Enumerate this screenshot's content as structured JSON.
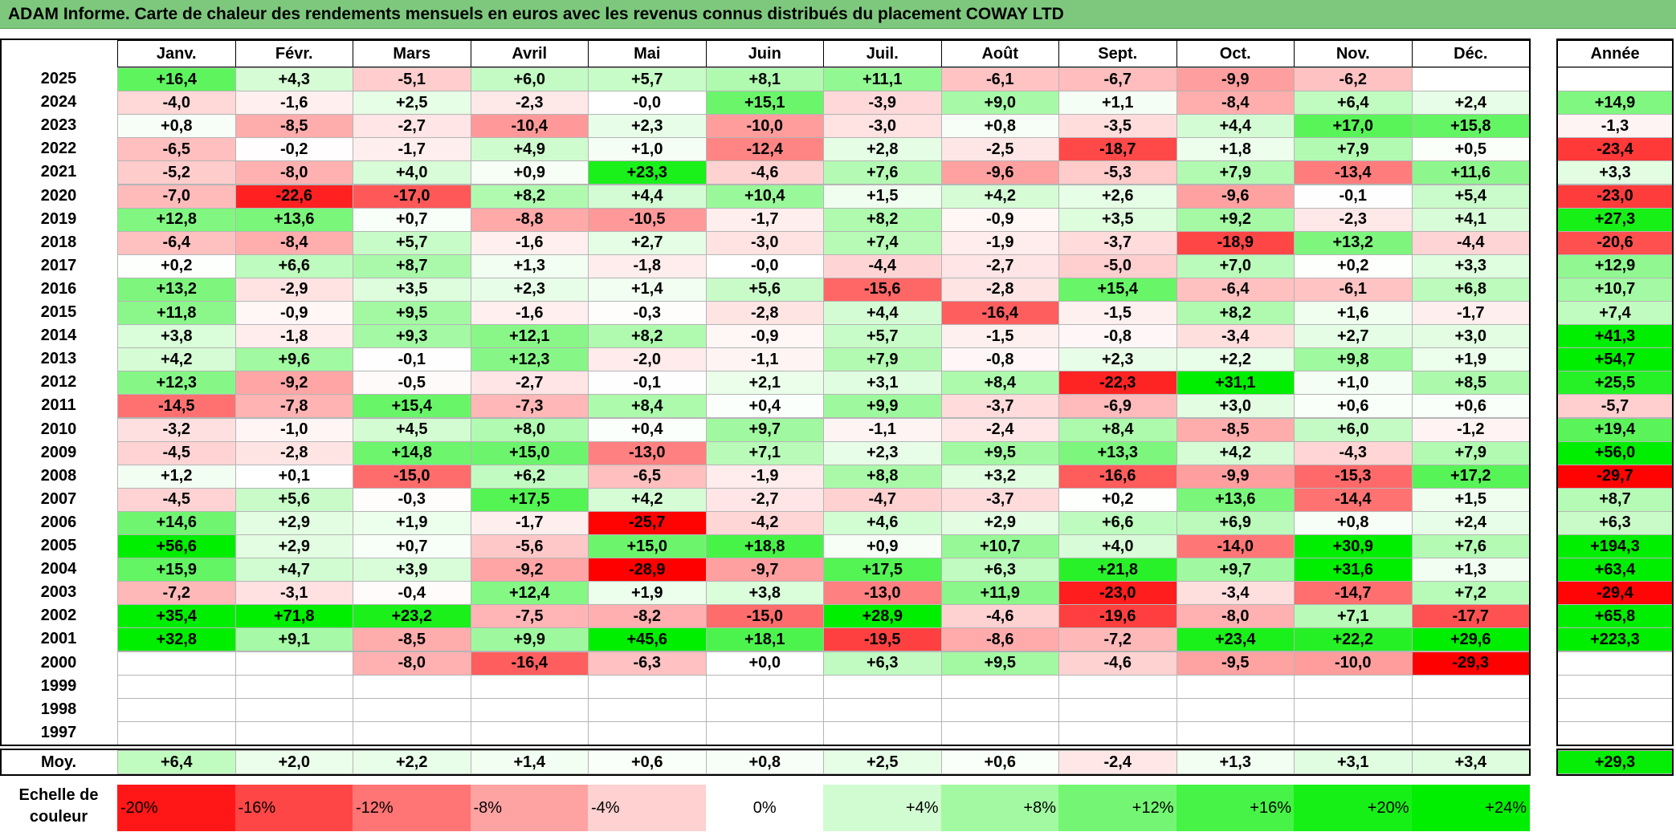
{
  "title": "ADAM Informe. Carte de chaleur des rendements mensuels en euros avec les revenus connus distribués du placement COWAY LTD",
  "chart_data": {
    "type": "heatmap",
    "months": [
      "Janv.",
      "Févr.",
      "Mars",
      "Avril",
      "Mai",
      "Juin",
      "Juil.",
      "Août",
      "Sept.",
      "Oct.",
      "Nov.",
      "Déc."
    ],
    "year_header": "Année",
    "rows": [
      {
        "year": "2025",
        "values": [
          "+16,4",
          "+4,3",
          "-5,1",
          "+6,0",
          "+5,7",
          "+8,1",
          "+11,1",
          "-6,1",
          "-6,7",
          "-9,9",
          "-6,2",
          ""
        ],
        "annual": ""
      },
      {
        "year": "2024",
        "values": [
          "-4,0",
          "-1,6",
          "+2,5",
          "-2,3",
          "-0,0",
          "+15,1",
          "-3,9",
          "+9,0",
          "+1,1",
          "-8,4",
          "+6,4",
          "+2,4"
        ],
        "annual": "+14,9"
      },
      {
        "year": "2023",
        "values": [
          "+0,8",
          "-8,5",
          "-2,7",
          "-10,4",
          "+2,3",
          "-10,0",
          "-3,0",
          "+0,8",
          "-3,5",
          "+4,4",
          "+17,0",
          "+15,8"
        ],
        "annual": "-1,3"
      },
      {
        "year": "2022",
        "values": [
          "-6,5",
          "-0,2",
          "-1,7",
          "+4,9",
          "+1,0",
          "-12,4",
          "+2,8",
          "-2,5",
          "-18,7",
          "+1,8",
          "+7,9",
          "+0,5"
        ],
        "annual": "-23,4"
      },
      {
        "year": "2021",
        "values": [
          "-5,2",
          "-8,0",
          "+4,0",
          "+0,9",
          "+23,3",
          "-4,6",
          "+7,6",
          "-9,6",
          "-5,3",
          "+7,9",
          "-13,4",
          "+11,6"
        ],
        "annual": "+3,3"
      },
      {
        "year": "2020",
        "values": [
          "-7,0",
          "-22,6",
          "-17,0",
          "+8,2",
          "+4,4",
          "+10,4",
          "+1,5",
          "+4,2",
          "+2,6",
          "-9,6",
          "-0,1",
          "+5,4"
        ],
        "annual": "-23,0"
      },
      {
        "year": "2019",
        "values": [
          "+12,8",
          "+13,6",
          "+0,7",
          "-8,8",
          "-10,5",
          "-1,7",
          "+8,2",
          "-0,9",
          "+3,5",
          "+9,2",
          "-2,3",
          "+4,1"
        ],
        "annual": "+27,3"
      },
      {
        "year": "2018",
        "values": [
          "-6,4",
          "-8,4",
          "+5,7",
          "-1,6",
          "+2,7",
          "-3,0",
          "+7,4",
          "-1,9",
          "-3,7",
          "-18,9",
          "+13,2",
          "-4,4"
        ],
        "annual": "-20,6"
      },
      {
        "year": "2017",
        "values": [
          "+0,2",
          "+6,6",
          "+8,7",
          "+1,3",
          "-1,8",
          "-0,0",
          "-4,4",
          "-2,7",
          "-5,0",
          "+7,0",
          "+0,2",
          "+3,3"
        ],
        "annual": "+12,9"
      },
      {
        "year": "2016",
        "values": [
          "+13,2",
          "-2,9",
          "+3,5",
          "+2,3",
          "+1,4",
          "+5,6",
          "-15,6",
          "-2,8",
          "+15,4",
          "-6,4",
          "-6,1",
          "+6,8"
        ],
        "annual": "+10,7"
      },
      {
        "year": "2015",
        "values": [
          "+11,8",
          "-0,9",
          "+9,5",
          "-1,6",
          "-0,3",
          "-2,8",
          "+4,4",
          "-16,4",
          "-1,5",
          "+8,2",
          "+1,6",
          "-1,7"
        ],
        "annual": "+7,4"
      },
      {
        "year": "2014",
        "values": [
          "+3,8",
          "-1,8",
          "+9,3",
          "+12,1",
          "+8,2",
          "-0,9",
          "+5,7",
          "-1,5",
          "-0,8",
          "-3,4",
          "+2,7",
          "+3,0"
        ],
        "annual": "+41,3"
      },
      {
        "year": "2013",
        "values": [
          "+4,2",
          "+9,6",
          "-0,1",
          "+12,3",
          "-2,0",
          "-1,1",
          "+7,9",
          "-0,8",
          "+2,3",
          "+2,2",
          "+9,8",
          "+1,9"
        ],
        "annual": "+54,7"
      },
      {
        "year": "2012",
        "values": [
          "+12,3",
          "-9,2",
          "-0,5",
          "-2,7",
          "-0,1",
          "+2,1",
          "+3,1",
          "+8,4",
          "-22,3",
          "+31,1",
          "+1,0",
          "+8,5"
        ],
        "annual": "+25,5"
      },
      {
        "year": "2011",
        "values": [
          "-14,5",
          "-7,8",
          "+15,4",
          "-7,3",
          "+8,4",
          "+0,4",
          "+9,9",
          "-3,7",
          "-6,9",
          "+3,0",
          "+0,6",
          "+0,6"
        ],
        "annual": "-5,7"
      },
      {
        "year": "2010",
        "values": [
          "-3,2",
          "-1,0",
          "+4,5",
          "+8,0",
          "+0,4",
          "+9,7",
          "-1,1",
          "-2,4",
          "+8,4",
          "-8,5",
          "+6,0",
          "-1,2"
        ],
        "annual": "+19,4"
      },
      {
        "year": "2009",
        "values": [
          "-4,5",
          "-2,8",
          "+14,8",
          "+15,0",
          "-13,0",
          "+7,1",
          "+2,3",
          "+9,5",
          "+13,3",
          "+4,2",
          "-4,3",
          "+7,9"
        ],
        "annual": "+56,0"
      },
      {
        "year": "2008",
        "values": [
          "+1,2",
          "+0,1",
          "-15,0",
          "+6,2",
          "-6,5",
          "-1,9",
          "+8,8",
          "+3,2",
          "-16,6",
          "-9,9",
          "-15,3",
          "+17,2"
        ],
        "annual": "-29,7"
      },
      {
        "year": "2007",
        "values": [
          "-4,5",
          "+5,6",
          "-0,3",
          "+17,5",
          "+4,2",
          "-2,7",
          "-4,7",
          "-3,7",
          "+0,2",
          "+13,6",
          "-14,4",
          "+1,5"
        ],
        "annual": "+8,7"
      },
      {
        "year": "2006",
        "values": [
          "+14,6",
          "+2,9",
          "+1,9",
          "-1,7",
          "-25,7",
          "-4,2",
          "+4,6",
          "+2,9",
          "+6,6",
          "+6,9",
          "+0,8",
          "+2,4"
        ],
        "annual": "+6,3"
      },
      {
        "year": "2005",
        "values": [
          "+56,6",
          "+2,9",
          "+0,7",
          "-5,6",
          "+15,0",
          "+18,8",
          "+0,9",
          "+10,7",
          "+4,0",
          "-14,0",
          "+30,9",
          "+7,6"
        ],
        "annual": "+194,3"
      },
      {
        "year": "2004",
        "values": [
          "+15,9",
          "+4,7",
          "+3,9",
          "-9,2",
          "-28,9",
          "-9,7",
          "+17,5",
          "+6,3",
          "+21,8",
          "+9,7",
          "+31,6",
          "+1,3"
        ],
        "annual": "+63,4"
      },
      {
        "year": "2003",
        "values": [
          "-7,2",
          "-3,1",
          "-0,4",
          "+12,4",
          "+1,9",
          "+3,8",
          "-13,0",
          "+11,9",
          "-23,0",
          "-3,4",
          "-14,7",
          "+7,2"
        ],
        "annual": "-29,4"
      },
      {
        "year": "2002",
        "values": [
          "+35,4",
          "+71,8",
          "+23,2",
          "-7,5",
          "-8,2",
          "-15,0",
          "+28,9",
          "-4,6",
          "-19,6",
          "-8,0",
          "+7,1",
          "-17,7"
        ],
        "annual": "+65,8"
      },
      {
        "year": "2001",
        "values": [
          "+32,8",
          "+9,1",
          "-8,5",
          "+9,9",
          "+45,6",
          "+18,1",
          "-19,5",
          "-8,6",
          "-7,2",
          "+23,4",
          "+22,2",
          "+29,6"
        ],
        "annual": "+223,3"
      },
      {
        "year": "2000",
        "values": [
          "",
          "",
          "-8,0",
          "-16,4",
          "-6,3",
          "+0,0",
          "+6,3",
          "+9,5",
          "-4,6",
          "-9,5",
          "-10,0",
          "-29,3"
        ],
        "annual": ""
      },
      {
        "year": "1999",
        "values": [
          "",
          "",
          "",
          "",
          "",
          "",
          "",
          "",
          "",
          "",
          "",
          ""
        ],
        "annual": ""
      },
      {
        "year": "1998",
        "values": [
          "",
          "",
          "",
          "",
          "",
          "",
          "",
          "",
          "",
          "",
          "",
          ""
        ],
        "annual": ""
      },
      {
        "year": "1997",
        "values": [
          "",
          "",
          "",
          "",
          "",
          "",
          "",
          "",
          "",
          "",
          "",
          ""
        ],
        "annual": ""
      }
    ],
    "average": {
      "label": "Moy.",
      "values": [
        "+6,4",
        "+2,0",
        "+2,2",
        "+1,4",
        "+0,6",
        "+0,8",
        "+2,5",
        "+0,6",
        "-2,4",
        "+1,3",
        "+3,1",
        "+3,4"
      ],
      "annual": "+29,3"
    },
    "color_scale": {
      "label_line1": "Echelle de",
      "label_line2": "couleur",
      "stops": [
        {
          "label": "-20%",
          "value": -20
        },
        {
          "label": "-16%",
          "value": -16
        },
        {
          "label": "-12%",
          "value": -12
        },
        {
          "label": "-8%",
          "value": -8
        },
        {
          "label": "-4%",
          "value": -4
        },
        {
          "label": "0%",
          "value": 0
        },
        {
          "label": "+4%",
          "value": 4
        },
        {
          "label": "+8%",
          "value": 8
        },
        {
          "label": "+12%",
          "value": 12
        },
        {
          "label": "+16%",
          "value": 16
        },
        {
          "label": "+20%",
          "value": 20
        },
        {
          "label": "+24%",
          "value": 24
        }
      ],
      "negative_color": "#ff0000",
      "positive_color": "#00ee00",
      "neutral_color": "#ffffff"
    }
  }
}
